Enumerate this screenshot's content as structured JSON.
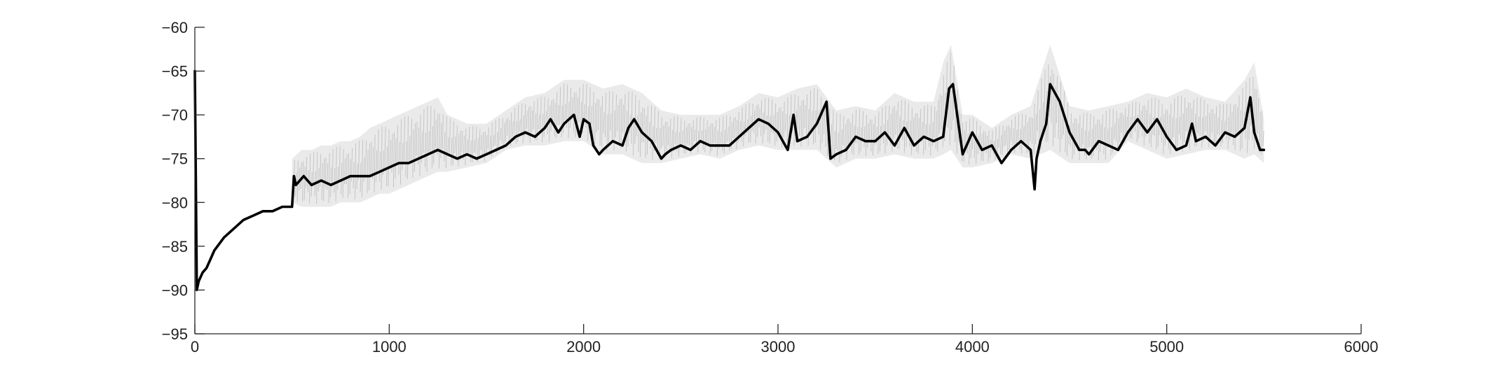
{
  "chart_data": {
    "type": "line",
    "title": "",
    "xlabel": "",
    "ylabel": "",
    "xlim": [
      0,
      6000
    ],
    "ylim": [
      -95,
      -60
    ],
    "xticks": [
      0,
      1000,
      2000,
      3000,
      4000,
      5000,
      6000
    ],
    "xtick_labels": [
      "0",
      "1000",
      "2000",
      "3000",
      "4000",
      "5000",
      "6000"
    ],
    "yticks": [
      -60,
      -65,
      -70,
      -75,
      -80,
      -85,
      -90,
      -95
    ],
    "ytick_labels": [
      "−60",
      "−65",
      "−70",
      "−75",
      "−80",
      "−85",
      "−90",
      "−95"
    ],
    "grid": false,
    "legend": "none",
    "colors": {
      "mean_line": "#000000",
      "raw_band": "#c4c4c4",
      "axis": "#262626"
    },
    "series": [
      {
        "role": "smoothed",
        "x": [
          0,
          10,
          20,
          40,
          60,
          80,
          100,
          150,
          200,
          250,
          300,
          350,
          400,
          450,
          500,
          510,
          520,
          560,
          600,
          650,
          700,
          750,
          800,
          850,
          900,
          950,
          1000,
          1050,
          1100,
          1150,
          1200,
          1250,
          1300,
          1350,
          1400,
          1450,
          1500,
          1550,
          1600,
          1650,
          1700,
          1750,
          1800,
          1830,
          1870,
          1900,
          1950,
          1980,
          2000,
          2030,
          2050,
          2080,
          2100,
          2150,
          2200,
          2230,
          2260,
          2300,
          2350,
          2400,
          2420,
          2450,
          2500,
          2550,
          2600,
          2650,
          2700,
          2750,
          2800,
          2850,
          2900,
          2950,
          3000,
          3050,
          3080,
          3100,
          3150,
          3200,
          3250,
          3270,
          3300,
          3350,
          3400,
          3450,
          3500,
          3550,
          3600,
          3650,
          3700,
          3750,
          3800,
          3850,
          3880,
          3900,
          3950,
          4000,
          4050,
          4100,
          4150,
          4200,
          4250,
          4300,
          4320,
          4330,
          4350,
          4380,
          4400,
          4450,
          4500,
          4550,
          4580,
          4600,
          4650,
          4700,
          4750,
          4800,
          4850,
          4900,
          4950,
          5000,
          5050,
          5100,
          5130,
          5150,
          5200,
          5250,
          5300,
          5350,
          5400,
          5430,
          5450,
          5480,
          5500
        ],
        "y": [
          -65,
          -90,
          -89,
          -88,
          -87.5,
          -86.5,
          -85.5,
          -84,
          -83,
          -82,
          -81.5,
          -81,
          -81,
          -80.5,
          -80.5,
          -77,
          -78,
          -77,
          -78,
          -77.5,
          -78,
          -77.5,
          -77,
          -77,
          -77,
          -76.5,
          -76,
          -75.5,
          -75.5,
          -75,
          -74.5,
          -74,
          -74.5,
          -75,
          -74.5,
          -75,
          -74.5,
          -74,
          -73.5,
          -72.5,
          -72,
          -72.5,
          -71.5,
          -70.5,
          -72,
          -71,
          -70,
          -72.5,
          -70.5,
          -71,
          -73.5,
          -74.5,
          -74,
          -73,
          -73.5,
          -71.5,
          -70.5,
          -72,
          -73,
          -75,
          -74.5,
          -74,
          -73.5,
          -74,
          -73,
          -73.5,
          -73.5,
          -73.5,
          -72.5,
          -71.5,
          -70.5,
          -71,
          -72,
          -74,
          -70,
          -73,
          -72.5,
          -71,
          -68.5,
          -75,
          -74.5,
          -74,
          -72.5,
          -73,
          -73,
          -72,
          -73.5,
          -71.5,
          -73.5,
          -72.5,
          -73,
          -72.5,
          -67,
          -66.5,
          -74.5,
          -72,
          -74,
          -73.5,
          -75.5,
          -74,
          -73,
          -74,
          -78.5,
          -75,
          -73,
          -71,
          -66.5,
          -68.5,
          -72,
          -74,
          -74,
          -74.5,
          -73,
          -73.5,
          -74,
          -72,
          -70.5,
          -72,
          -70.5,
          -72.5,
          -74,
          -73.5,
          -71,
          -73,
          -72.5,
          -73.5,
          -72,
          -72.5,
          -71.5,
          -68,
          -72,
          -74,
          -74
        ]
      },
      {
        "role": "raw",
        "x": [
          500,
          550,
          600,
          650,
          700,
          750,
          800,
          850,
          900,
          950,
          1000,
          1050,
          1100,
          1150,
          1200,
          1250,
          1300,
          1400,
          1500,
          1600,
          1700,
          1800,
          1900,
          2000,
          2100,
          2200,
          2300,
          2400,
          2500,
          2600,
          2700,
          2800,
          2900,
          3000,
          3100,
          3200,
          3300,
          3400,
          3500,
          3600,
          3700,
          3800,
          3850,
          3890,
          3950,
          4000,
          4100,
          4200,
          4300,
          4400,
          4500,
          4600,
          4700,
          4800,
          4900,
          5000,
          5100,
          5200,
          5300,
          5400,
          5450,
          5500
        ],
        "y_min": [
          -80,
          -80.5,
          -80.5,
          -80.5,
          -80.5,
          -80,
          -80,
          -80,
          -79.5,
          -79,
          -79,
          -78.5,
          -78,
          -77.5,
          -77,
          -76.5,
          -76.5,
          -76,
          -75.5,
          -74,
          -73.5,
          -73.5,
          -73,
          -73,
          -74.5,
          -74.5,
          -75.5,
          -75.5,
          -75,
          -74.5,
          -75,
          -74,
          -73.5,
          -74,
          -74,
          -74,
          -76,
          -75,
          -75,
          -74.5,
          -75,
          -75,
          -74.5,
          -74,
          -76,
          -76,
          -75.5,
          -74.5,
          -75,
          -74,
          -75.5,
          -75.5,
          -75.5,
          -73,
          -74,
          -75,
          -74.5,
          -74,
          -74,
          -75,
          -74.5,
          -75.5
        ],
        "y_max": [
          -75,
          -74,
          -74,
          -73.5,
          -73.5,
          -73,
          -73,
          -72.5,
          -71.5,
          -71,
          -70.5,
          -70,
          -69.5,
          -69,
          -68.5,
          -68,
          -70,
          -71,
          -71,
          -69.5,
          -68,
          -67.5,
          -66,
          -66,
          -67,
          -66.5,
          -67.5,
          -69.5,
          -70,
          -70,
          -70,
          -69,
          -67.5,
          -68,
          -67,
          -66.5,
          -69.5,
          -69,
          -69.5,
          -67.5,
          -68.5,
          -68.5,
          -64,
          -62,
          -70,
          -70,
          -71.5,
          -70,
          -69,
          -62,
          -69,
          -69.5,
          -69,
          -68.5,
          -67.5,
          -68,
          -67,
          -68,
          -68.5,
          -66,
          -64,
          -70.5
        ]
      }
    ]
  }
}
